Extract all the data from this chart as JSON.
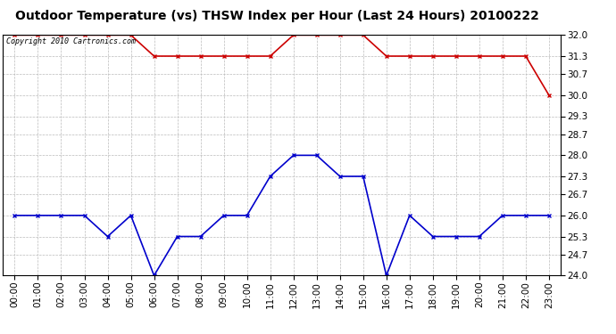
{
  "title": "Outdoor Temperature (vs) THSW Index per Hour (Last 24 Hours) 20100222",
  "copyright": "Copyright 2010 Cartronics.com",
  "hours": [
    0,
    1,
    2,
    3,
    4,
    5,
    6,
    7,
    8,
    9,
    10,
    11,
    12,
    13,
    14,
    15,
    16,
    17,
    18,
    19,
    20,
    21,
    22,
    23
  ],
  "thsw": [
    32.0,
    32.0,
    32.0,
    32.0,
    32.0,
    32.0,
    31.3,
    31.3,
    31.3,
    31.3,
    31.3,
    31.3,
    32.0,
    32.0,
    32.0,
    32.0,
    31.3,
    31.3,
    31.3,
    31.3,
    31.3,
    31.3,
    31.3,
    30.0
  ],
  "temp": [
    26.0,
    26.0,
    26.0,
    26.0,
    25.3,
    26.0,
    24.0,
    25.3,
    25.3,
    26.0,
    26.0,
    27.3,
    28.0,
    28.0,
    27.3,
    27.3,
    24.0,
    26.0,
    25.3,
    25.3,
    25.3,
    26.0,
    26.0,
    26.0
  ],
  "thsw_color": "#cc0000",
  "temp_color": "#0000cc",
  "background_color": "#ffffff",
  "plot_bg_color": "#ffffff",
  "grid_color": "#bbbbbb",
  "ylim": [
    24.0,
    32.0
  ],
  "yticks": [
    24.0,
    24.7,
    25.3,
    26.0,
    26.7,
    27.3,
    28.0,
    28.7,
    29.3,
    30.0,
    30.7,
    31.3,
    32.0
  ],
  "title_fontsize": 10,
  "tick_fontsize": 7.5,
  "copyright_fontsize": 6,
  "marker": "x",
  "markersize": 3,
  "linewidth": 1.2
}
